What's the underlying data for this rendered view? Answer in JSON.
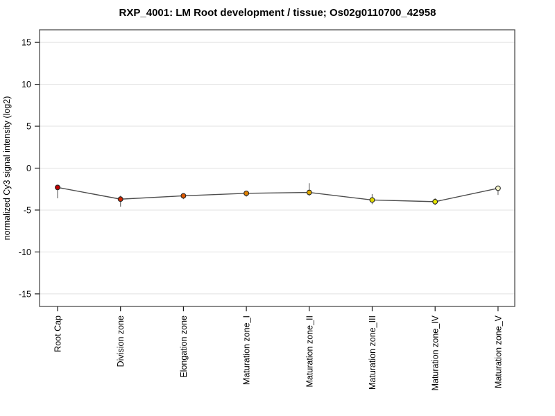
{
  "title": "RXP_4001: LM Root development / tissue; Os02g0110700_42958",
  "chart_data": {
    "type": "line",
    "title": "RXP_4001: LM Root development / tissue; Os02g0110700_42958",
    "categories": [
      "Root Cap",
      "Division zone",
      "Elongation zone",
      "Maturation zone_I",
      "Maturation zone_II",
      "Maturation zone_III",
      "Maturation zone_IV",
      "Maturation zone_V"
    ],
    "values": [
      -2.3,
      -3.7,
      -3.3,
      -3.0,
      -2.9,
      -3.8,
      -4.0,
      -2.4
    ],
    "error_high": [
      -2.0,
      -3.3,
      -3.0,
      -2.7,
      -1.8,
      -3.1,
      -3.6,
      -2.1
    ],
    "error_low": [
      -3.6,
      -4.6,
      -3.7,
      -3.4,
      -3.3,
      -4.3,
      -4.4,
      -3.2
    ],
    "point_colors": [
      "#C00000",
      "#CF2600",
      "#DC5800",
      "#E08000",
      "#DFA800",
      "#DFD700",
      "#E6E600",
      "#F4F4C8"
    ],
    "xlabel": "",
    "ylabel": "normalized Cy3 signal intensity (log2)",
    "ylim": [
      -16.5,
      16.5
    ],
    "yticks": [
      -15,
      -10,
      -5,
      0,
      5,
      10,
      15
    ],
    "grid": true,
    "legend": "none",
    "colors": {
      "line": "#4D4D4D",
      "errorbar": "#787878",
      "marker_outline": "#262626",
      "gridline": "#E0E0E0",
      "box_border": "#4D4D4D",
      "tick": "#1A1A1A",
      "label_text": "#000000"
    }
  }
}
